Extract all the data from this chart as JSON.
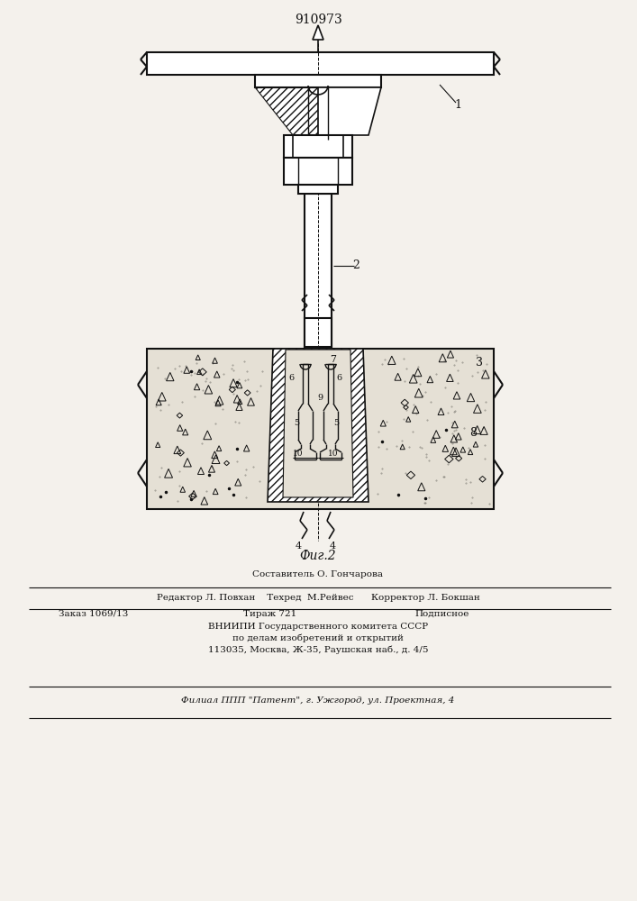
{
  "title": "910973",
  "fig_label": "Фиг.2",
  "bg_color": "#f4f1ec",
  "line_color": "#111111",
  "footer": {
    "line1": "Составитель О. Гончарова",
    "line2": "Редактор Л. Повхан    Техред  М.Рейвес      Корректор Л. Бокшан",
    "order": "Заказ 1069/13",
    "tirazh": "Тираж 721",
    "podp": "Подписное",
    "org1": "ВНИИПИ Государственного комитета СССР",
    "org2": "по делам изобретений и открытий",
    "addr": "113035, Москва, Ж-35, Раушская наб., д. 4/5",
    "filial": "Филиал ППП \"Патент\", г. Ужгород, ул. Проектная, 4"
  }
}
